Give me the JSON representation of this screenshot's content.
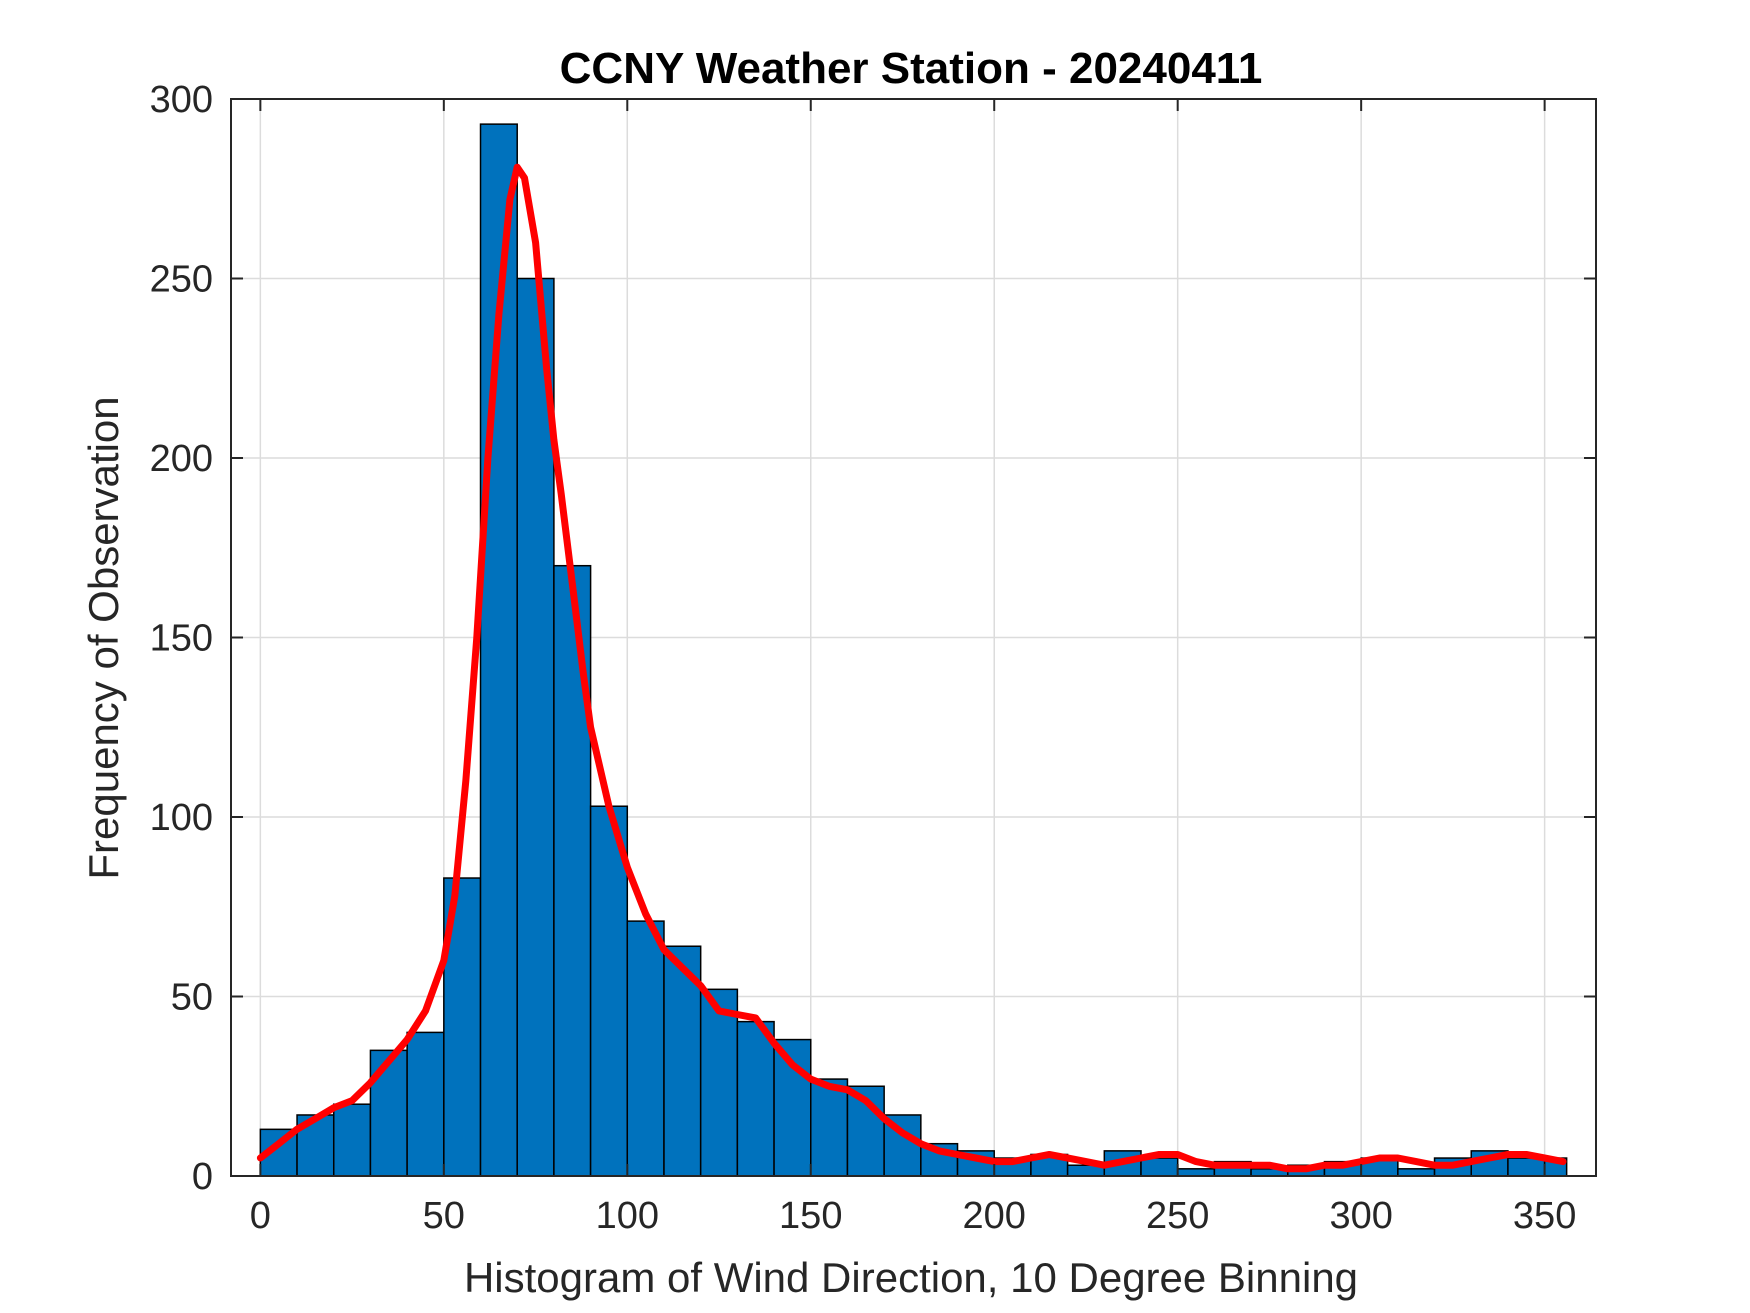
{
  "chart_data": {
    "type": "bar",
    "title": "CCNY Weather Station - 20240411",
    "xlabel": "Histogram of Wind Direction, 10 Degree Binning",
    "ylabel": "Frequency of Observation",
    "xlim": [
      -8,
      364
    ],
    "ylim": [
      0,
      300
    ],
    "xticks": [
      0,
      50,
      100,
      150,
      200,
      250,
      300,
      350
    ],
    "yticks": [
      0,
      50,
      100,
      150,
      200,
      250,
      300
    ],
    "grid": true,
    "bin_width": 10,
    "bin_edges": [
      0,
      10,
      20,
      30,
      40,
      50,
      60,
      70,
      80,
      90,
      100,
      110,
      120,
      130,
      140,
      150,
      160,
      170,
      180,
      190,
      200,
      210,
      220,
      230,
      240,
      250,
      260,
      270,
      280,
      290,
      300,
      310,
      320,
      330,
      340,
      350,
      356
    ],
    "values": [
      13,
      17,
      20,
      35,
      40,
      83,
      293,
      250,
      170,
      103,
      71,
      64,
      52,
      43,
      38,
      27,
      25,
      17,
      9,
      7,
      5,
      6,
      3,
      7,
      5,
      2,
      4,
      2,
      3,
      4,
      5,
      2,
      5,
      7,
      5,
      5
    ],
    "bar_color": "#0072BD",
    "series": [
      {
        "type": "line",
        "color": "#FF0000",
        "x": [
          0,
          5,
          10,
          15,
          20,
          25,
          30,
          35,
          40,
          45,
          50,
          53,
          56,
          59,
          62,
          65,
          68,
          70,
          72,
          75,
          78,
          80,
          82,
          85,
          88,
          90,
          95,
          100,
          105,
          110,
          115,
          120,
          125,
          130,
          135,
          140,
          145,
          150,
          155,
          160,
          165,
          170,
          175,
          180,
          185,
          190,
          195,
          200,
          205,
          210,
          215,
          220,
          225,
          230,
          235,
          240,
          245,
          250,
          255,
          260,
          265,
          270,
          275,
          280,
          285,
          290,
          295,
          300,
          305,
          310,
          315,
          320,
          325,
          330,
          335,
          340,
          345,
          350,
          355
        ],
        "y": [
          5,
          9,
          13,
          16,
          19,
          21,
          26,
          32,
          38,
          46,
          60,
          78,
          110,
          150,
          200,
          240,
          272,
          281,
          278,
          260,
          225,
          205,
          190,
          165,
          140,
          125,
          103,
          86,
          73,
          63,
          58,
          53,
          46,
          45,
          44,
          37,
          31,
          27,
          25,
          24,
          21,
          16,
          12,
          9,
          7,
          6,
          5,
          4,
          4,
          5,
          6,
          5,
          4,
          3,
          4,
          5,
          6,
          6,
          4,
          3,
          3,
          3,
          3,
          2,
          2,
          3,
          3,
          4,
          5,
          5,
          4,
          3,
          3,
          4,
          5,
          6,
          6,
          5,
          4
        ]
      }
    ]
  }
}
